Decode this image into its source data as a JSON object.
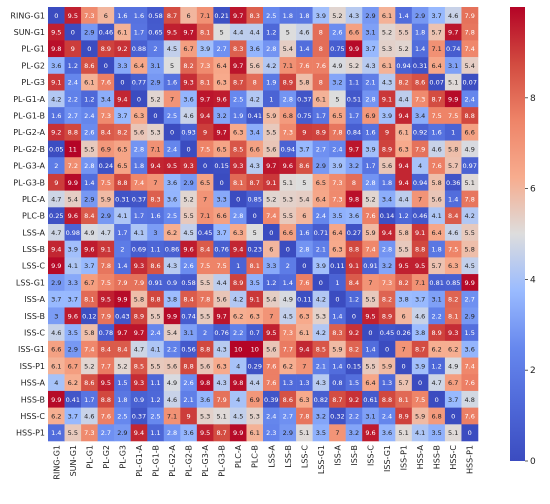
{
  "chart_data": {
    "type": "heatmap",
    "title": "",
    "xlabel": "",
    "ylabel": "",
    "labels": [
      "RING-G1",
      "SUN-G1",
      "PL-G1",
      "PL-G2",
      "PL-G3",
      "PL-G1-A",
      "PL-G1-B",
      "PL-G2-A",
      "PL-G2-B",
      "PL-G3-A",
      "PL-G3-B",
      "PLC-A",
      "PLC-B",
      "LSS-A",
      "LSS-B",
      "LSS-C",
      "LSS-G1",
      "ISS-A",
      "ISS-B",
      "ISS-C",
      "ISS-G1",
      "ISS-P1",
      "HSS-A",
      "HSS-B",
      "HSS-C",
      "HSS-P1"
    ],
    "x_labels": [
      "RING-G1",
      "SUN-G1",
      "PL-G1",
      "PL-G2",
      "PL-G3",
      "PL-G1-A",
      "PL-G1-B",
      "PL-G2-A",
      "PL-G2-B",
      "PL-G3-A",
      "PL-G3-B",
      "PLC-A",
      "PLC-B",
      "LSS-A",
      "LSS-B",
      "LSS-C",
      "LSS-G1",
      "ISS-A",
      "ISS-B",
      "ISS-C",
      "ISS-G1",
      "ISS-P1",
      "HSS-A",
      "HSS-B",
      "HSS-C",
      "HSS-P1"
    ],
    "y_labels": [
      "RING-G1",
      "SUN-G1",
      "PL-G1",
      "PL-G2",
      "PL-G3",
      "PL-G1-A",
      "PL-G1-B",
      "PL-G2-A",
      "PL-G2-B",
      "PL-G3-A",
      "PL-G3-B",
      "PLC-A",
      "PLC-B",
      "LSS-A",
      "LSS-B",
      "LSS-C",
      "LSS-G1",
      "ISS-A",
      "ISS-B",
      "ISS-C",
      "ISS-G1",
      "ISS-P1",
      "HSS-A",
      "HSS-B",
      "HSS-C",
      "HSS-P1"
    ],
    "values": [
      [
        "0",
        "9.5",
        "7.3",
        "6",
        "1.6",
        "1.6",
        "0.58",
        "8.7",
        "6",
        "7.1",
        "0.21",
        "9.7",
        "8.3",
        "2.5",
        "1.8",
        "1.8",
        "3.9",
        "5.2",
        "4.3",
        "2.9",
        "6.1",
        "1.4",
        "2.9",
        "3.7",
        "4.6",
        "7.9"
      ],
      [
        "9.5",
        "0",
        "2.9",
        "0.46",
        "6.1",
        "1.7",
        "0.65",
        "9.5",
        "9.7",
        "8.1",
        "5",
        "4.4",
        "4.4",
        "1.2",
        "5",
        "4.6",
        "8",
        "2.6",
        "6.6",
        "3.1",
        "5.2",
        "5.5",
        "1.8",
        "5.7",
        "9.7",
        "7.8"
      ],
      [
        "9.8",
        "9",
        "0",
        "8.9",
        "9.2",
        "0.88",
        "2",
        "4.5",
        "6.7",
        "3.9",
        "2.7",
        "8.3",
        "3.6",
        "2.8",
        "5.4",
        "1.4",
        "8",
        "0.75",
        "9.9",
        "3.7",
        "5.3",
        "5.2",
        "1.4",
        "7.1",
        "0.74",
        "7.4"
      ],
      [
        "3.6",
        "1.2",
        "8.6",
        "0",
        "3.3",
        "6.4",
        "3.1",
        "5",
        "8.2",
        "7.3",
        "6.4",
        "9.7",
        "5.6",
        "4.2",
        "7.1",
        "7.6",
        "7.6",
        "4.9",
        "5.2",
        "4.3",
        "6.1",
        "0.94",
        "0.31",
        "6.4",
        "3.1",
        "5.4"
      ],
      [
        "9.1",
        "2.4",
        "6.1",
        "7.6",
        "0",
        "0.77",
        "2.9",
        "1.6",
        "9.3",
        "8.1",
        "6.3",
        "8.7",
        "8",
        "1.9",
        "8.9",
        "5.8",
        "8",
        "3.2",
        "1.1",
        "2.1",
        "4.3",
        "8.2",
        "8.6",
        "0.07",
        "5.1",
        "0.07"
      ],
      [
        "4.2",
        "2.2",
        "1.2",
        "3.4",
        "9.4",
        "0",
        "5.2",
        "7",
        "3.6",
        "9.7",
        "9.6",
        "2.5",
        "4.2",
        "1",
        "2.8",
        "0.37",
        "6.1",
        "5",
        "0.51",
        "2.8",
        "9.1",
        "4.4",
        "7.3",
        "8.7",
        "9.9",
        "2.4"
      ],
      [
        "1.6",
        "2.7",
        "2.4",
        "7.3",
        "3.7",
        "6.3",
        "0",
        "2.5",
        "4.6",
        "9.4",
        "3.2",
        "1.9",
        "0.41",
        "5.9",
        "6.8",
        "0.75",
        "1.7",
        "6.5",
        "1.7",
        "6.9",
        "3.9",
        "9.4",
        "3.4",
        "7.5",
        "7.5",
        "8.8"
      ],
      [
        "9.2",
        "8.8",
        "2.6",
        "8.4",
        "8.2",
        "5.6",
        "5.3",
        "0",
        "0.93",
        "9",
        "9.7",
        "6.3",
        "3.4",
        "5.5",
        "7.3",
        "9",
        "8.9",
        "7.8",
        "0.84",
        "1.6",
        "9",
        "6.1",
        "0.92",
        "1.6",
        "1",
        "6.6"
      ],
      [
        "0.05",
        "11",
        "5.5",
        "6.9",
        "6.5",
        "2.8",
        "7.1",
        "2.4",
        "0",
        "7.5",
        "6.5",
        "8.5",
        "6.6",
        "5.6",
        "0.94",
        "3.7",
        "2.7",
        "2.4",
        "9.7",
        "3.9",
        "8.9",
        "6.3",
        "7.9",
        "4.6",
        "5.8",
        "4.9"
      ],
      [
        "2",
        "7.2",
        "2.8",
        "0.24",
        "6.5",
        "1.8",
        "9.4",
        "9.5",
        "9.3",
        "0",
        "0.15",
        "9.3",
        "4.3",
        "9.7",
        "9.6",
        "8.6",
        "2.9",
        "3.9",
        "3.2",
        "1.7",
        "5.6",
        "9.4",
        "4",
        "7.6",
        "5.7",
        "0.97"
      ],
      [
        "9",
        "9.9",
        "1.4",
        "7.5",
        "8.8",
        "7.4",
        "7",
        "3.6",
        "2.9",
        "6.5",
        "0",
        "8.1",
        "8.7",
        "9.1",
        "5.1",
        "5",
        "6.5",
        "7.3",
        "8",
        "2.8",
        "1.8",
        "9.4",
        "0.94",
        "5.8",
        "0.36",
        "5.1"
      ],
      [
        "4.7",
        "5.4",
        "2.9",
        "5.9",
        "0.31",
        "0.37",
        "8.3",
        "3.6",
        "5.2",
        "7",
        "3.3",
        "0",
        "0.85",
        "5.2",
        "5.3",
        "5.4",
        "6.4",
        "7.3",
        "9.8",
        "5.2",
        "3.4",
        "4.4",
        "7",
        "5.6",
        "1.4",
        "7.8"
      ],
      [
        "0.25",
        "9.6",
        "8.4",
        "2.9",
        "4.1",
        "1.7",
        "1.6",
        "2.5",
        "5.5",
        "7.1",
        "6.6",
        "2.8",
        "0",
        "7.4",
        "5.5",
        "6",
        "2.4",
        "3.5",
        "3.6",
        "7.6",
        "0.14",
        "1.2",
        "0.46",
        "4.1",
        "8.4",
        "4.2"
      ],
      [
        "4.7",
        "0.98",
        "4.9",
        "4.7",
        "1.7",
        "4.1",
        "3",
        "6.2",
        "4.5",
        "0.45",
        "3.7",
        "6.3",
        "5",
        "0",
        "6.6",
        "1.6",
        "0.71",
        "6.4",
        "0.27",
        "5.9",
        "9.4",
        "5.8",
        "9.1",
        "6.4",
        "4.6",
        "5.5"
      ],
      [
        "9.4",
        "3.9",
        "9.6",
        "9.1",
        "2",
        "0.69",
        "1.1",
        "0.86",
        "9.6",
        "8.4",
        "0.76",
        "9.4",
        "0.23",
        "6",
        "0",
        "2.8",
        "2.1",
        "6.3",
        "8.8",
        "7.4",
        "2.8",
        "5.5",
        "8.8",
        "1.8",
        "7.5",
        "5.8"
      ],
      [
        "9.9",
        "4.1",
        "3.7",
        "7.8",
        "1.4",
        "9.3",
        "8.6",
        "4.3",
        "2.6",
        "7.5",
        "7.5",
        "1",
        "8.1",
        "3.3",
        "2",
        "0",
        "3.9",
        "0.11",
        "9.1",
        "0.91",
        "3.2",
        "9.5",
        "9.5",
        "5.7",
        "6.3",
        "4.5"
      ],
      [
        "2.9",
        "3.3",
        "6.7",
        "7.5",
        "7.9",
        "7.9",
        "0.91",
        "0.9",
        "0.58",
        "5.5",
        "4.4",
        "8.9",
        "3.5",
        "1.2",
        "1.4",
        "7.6",
        "0",
        "1",
        "8.4",
        "7",
        "7.3",
        "8.2",
        "7.1",
        "0.81",
        "0.85",
        "9.9"
      ],
      [
        "3.7",
        "3.7",
        "8.1",
        "9.5",
        "9.9",
        "5.8",
        "8.8",
        "3.8",
        "8.4",
        "7.8",
        "5.6",
        "4.2",
        "9.1",
        "5.4",
        "4.9",
        "0.11",
        "4.2",
        "0",
        "1.2",
        "5.5",
        "8.2",
        "3.8",
        "3.7",
        "3.1",
        "8.2",
        "2.7"
      ],
      [
        "3",
        "9.6",
        "0.12",
        "7.9",
        "0.43",
        "8.9",
        "5.5",
        "9.9",
        "0.74",
        "5.5",
        "9.7",
        "6.2",
        "6.3",
        "7",
        "4.5",
        "6.3",
        "5.3",
        "1.4",
        "0",
        "9.5",
        "8.9",
        "6",
        "4.6",
        "2.2",
        "8.1",
        "2.9"
      ],
      [
        "4.6",
        "3.5",
        "5.8",
        "0.78",
        "9.7",
        "9.7",
        "2.4",
        "5.4",
        "3.1",
        "2",
        "0.76",
        "2.2",
        "0.7",
        "9.5",
        "7.3",
        "6.1",
        "4.2",
        "8.3",
        "9.2",
        "0",
        "0.45",
        "0.26",
        "3.8",
        "8.9",
        "9.3",
        "1.5"
      ],
      [
        "6.6",
        "2.9",
        "7.4",
        "8.4",
        "8.4",
        "4.7",
        "4.1",
        "2.2",
        "0.56",
        "8.8",
        "4.3",
        "10",
        "10",
        "5.6",
        "7.7",
        "9.4",
        "8.5",
        "5.9",
        "8.2",
        "1.4",
        "0",
        "7",
        "8.7",
        "6.2",
        "6.2",
        "3.6"
      ],
      [
        "6.1",
        "6.7",
        "5.2",
        "7.7",
        "5.2",
        "8.5",
        "5.5",
        "5.6",
        "8.8",
        "5.6",
        "6.3",
        "4",
        "0.29",
        "7.6",
        "6.2",
        "7",
        "2.1",
        "1.4",
        "0.15",
        "5.5",
        "5.9",
        "0",
        "3.9",
        "1.2",
        "4.9",
        "7.4"
      ],
      [
        "4",
        "6.2",
        "8.6",
        "9.5",
        "1.5",
        "9.3",
        "1.1",
        "4.9",
        "2.6",
        "9.8",
        "4.3",
        "9.8",
        "4.4",
        "7.6",
        "1.3",
        "1.3",
        "4.3",
        "0.8",
        "1.5",
        "6.4",
        "1.3",
        "5.7",
        "0",
        "4.7",
        "6.7",
        "7.6"
      ],
      [
        "9.9",
        "0.41",
        "1.7",
        "8.8",
        "1.8",
        "0.9",
        "1.2",
        "4.6",
        "2.1",
        "3.6",
        "7.9",
        "4",
        "6.9",
        "0.39",
        "8.6",
        "6.3",
        "0.82",
        "8.7",
        "9.2",
        "0.61",
        "8.8",
        "8.1",
        "7.5",
        "0",
        "3.7",
        "4.8"
      ],
      [
        "6.2",
        "3.7",
        "4.6",
        "7.6",
        "2.5",
        "0.37",
        "2.5",
        "7.1",
        "9",
        "5.3",
        "5.1",
        "4.5",
        "5.3",
        "2.4",
        "2.7",
        "7.8",
        "3.2",
        "0.32",
        "2.2",
        "3.1",
        "2.4",
        "8.9",
        "5.9",
        "6.8",
        "0",
        "7.6"
      ],
      [
        "1.4",
        "5.5",
        "7.3",
        "2.7",
        "2.9",
        "9.4",
        "1.1",
        "2.8",
        "3.6",
        "9.5",
        "8.7",
        "9.9",
        "6.1",
        "2.3",
        "2.9",
        "5.1",
        "3.5",
        "7",
        "3.2",
        "9.6",
        "3.6",
        "5.1",
        "4.1",
        "3.5",
        "5.1",
        "0"
      ]
    ],
    "vmin": 0,
    "vmax": 10,
    "colorbar_ticks": [
      0,
      2,
      4,
      6,
      8
    ],
    "colormap": "coolwarm",
    "colors": {
      "low": "#3b4cc0",
      "mid": "#dddddd",
      "high": "#b40426"
    }
  }
}
